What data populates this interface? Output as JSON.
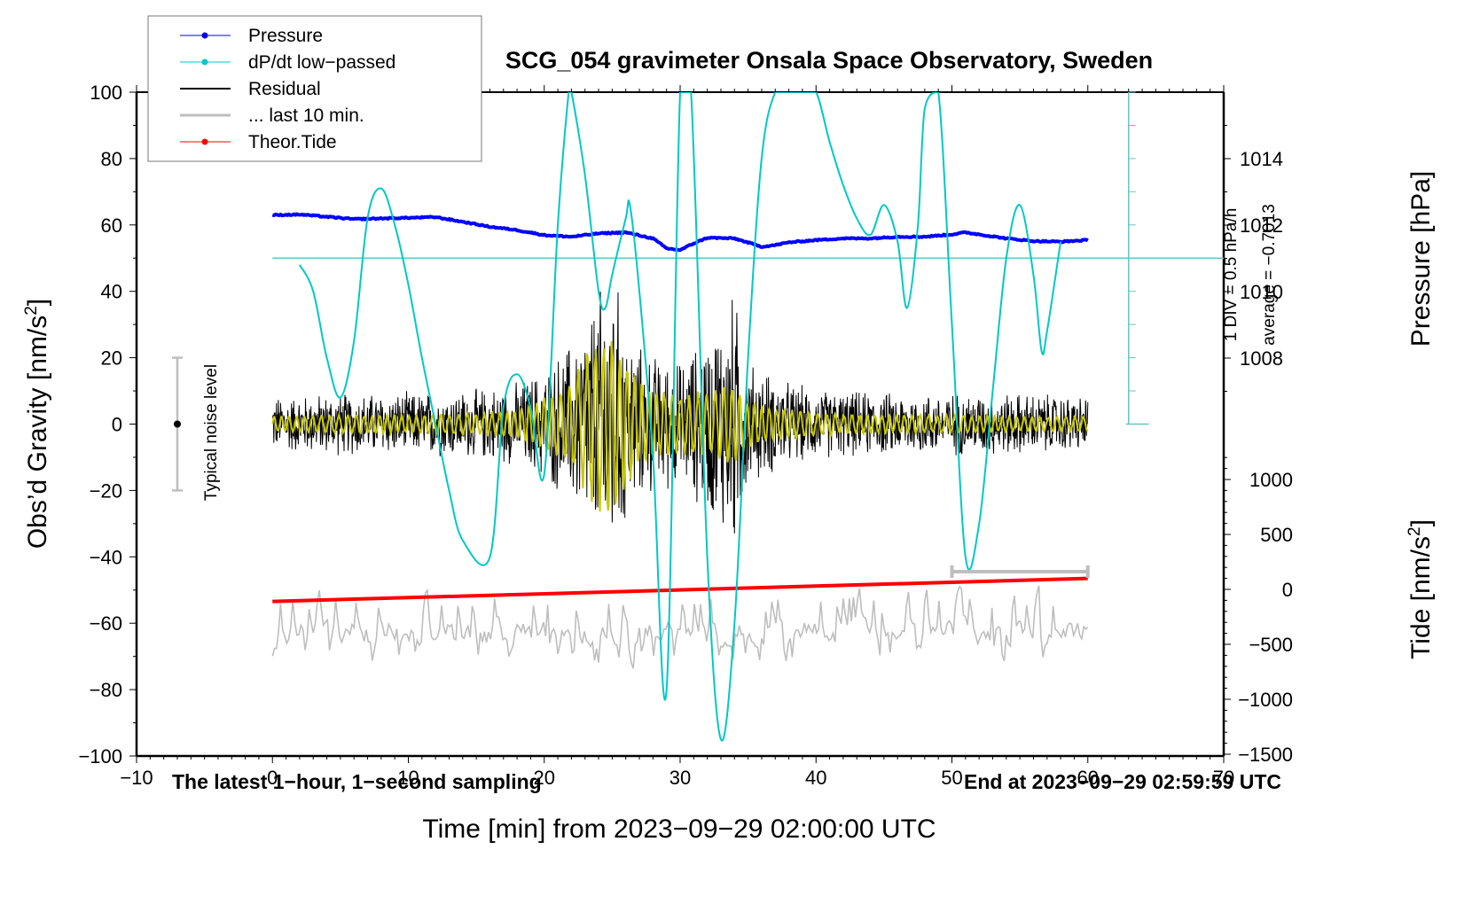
{
  "chart_data": {
    "type": "line",
    "title": "SCG_054 gravimeter Onsala Space Observatory, Sweden",
    "xlabel": "Time [min] from 2023−09−29 02:00:00 UTC",
    "ylabel": "Obs’d Gravity [nm/s²]",
    "ylabel_right_top": "Pressure [hPa]",
    "ylabel_right_bottom": "Tide [nm/s²]",
    "xlim": [
      -10,
      70
    ],
    "ylim": [
      -100,
      100
    ],
    "pressure_lim_visible": [
      1007,
      1016
    ],
    "tide_lim_visible": [
      -1500,
      1200
    ],
    "x_ticks": [
      "−10",
      "0",
      "10",
      "20",
      "30",
      "40",
      "50",
      "60",
      "70"
    ],
    "x_tick_values": [
      -10,
      0,
      10,
      20,
      30,
      40,
      50,
      60,
      70
    ],
    "y_ticks": [
      "100",
      "80",
      "60",
      "40",
      "20",
      "0",
      "−20",
      "−40",
      "−60",
      "−80",
      "−100"
    ],
    "y_tick_values": [
      100,
      80,
      60,
      40,
      20,
      0,
      -20,
      -40,
      -60,
      -80,
      -100
    ],
    "pressure_ticks": [
      "1014",
      "1012",
      "1010",
      "1008"
    ],
    "pressure_tick_values": [
      1014,
      1012,
      1010,
      1008
    ],
    "tide_ticks": [
      "1000",
      "500",
      "0",
      "−500",
      "−1000",
      "−1500"
    ],
    "tide_tick_values": [
      1000,
      500,
      0,
      -500,
      -1000,
      -1500
    ],
    "legend": {
      "placement": "top-left",
      "entries": [
        {
          "label": "Pressure",
          "color": "#0000ff",
          "marker": "dot"
        },
        {
          "label": "dP/dt low−passed",
          "color": "#00c8c8",
          "marker": "dot"
        },
        {
          "label": "Residual",
          "color": "#000000",
          "marker": "line"
        },
        {
          "label": "... last 10 min.",
          "color": "#bebebe",
          "marker": "line"
        },
        {
          "label": "Theor.Tide",
          "color": "#ff0000",
          "marker": "dot"
        }
      ]
    },
    "annotations": {
      "bottom_left": "The latest 1−hour, 1−second sampling",
      "bottom_right": "End at 2023−09−29 02:59:59 UTC",
      "noise_label": "Typical noise level",
      "noise_range": [
        -20,
        20
      ],
      "noise_x": -7,
      "dpdt_scale": "1 DIV = 0.5 hPa/h",
      "dpdt_average": "average = −0.7013",
      "last10_bar_range_min": [
        50,
        60
      ]
    },
    "series": [
      {
        "name": "Pressure",
        "axis": "pressure",
        "unit": "hPa",
        "color": "#0000ff",
        "x": [
          0,
          2,
          4,
          6,
          8,
          10,
          12,
          14,
          16,
          18,
          20,
          22,
          24,
          26,
          28,
          29,
          30,
          31,
          32,
          34,
          36,
          37,
          38,
          40,
          42,
          44,
          46,
          48,
          50,
          51,
          52,
          54,
          56,
          58,
          60
        ],
        "values": [
          1012.3,
          1012.32,
          1012.25,
          1012.18,
          1012.2,
          1012.22,
          1012.24,
          1012.1,
          1011.95,
          1011.85,
          1011.7,
          1011.65,
          1011.75,
          1011.78,
          1011.6,
          1011.3,
          1011.25,
          1011.45,
          1011.62,
          1011.6,
          1011.35,
          1011.4,
          1011.48,
          1011.55,
          1011.6,
          1011.6,
          1011.65,
          1011.65,
          1011.72,
          1011.78,
          1011.72,
          1011.6,
          1011.52,
          1011.5,
          1011.55
        ]
      },
      {
        "name": "dP/dt low-passed",
        "axis": "gravity-scaled",
        "unit": "nm/s2 plot units (1 DIV = 0.5 hPa/h)",
        "color": "#00c8c8",
        "x": [
          2,
          3,
          4,
          5,
          6,
          7,
          8,
          9,
          10,
          11,
          12,
          13,
          14,
          16,
          17,
          18,
          19,
          20,
          21,
          21.8,
          22,
          23,
          24,
          24.5,
          25,
          26,
          26.3,
          27,
          28,
          29,
          30,
          30.8,
          32,
          33,
          34,
          35,
          36,
          37,
          38,
          39,
          40,
          41,
          42,
          43,
          44,
          45,
          46,
          46.7,
          47.5,
          48,
          49,
          50,
          51,
          52,
          53,
          54,
          55,
          56,
          56.6,
          57,
          58
        ],
        "values": [
          48,
          40,
          20,
          8,
          25,
          62,
          71,
          60,
          42,
          20,
          0,
          -20,
          -35,
          -40,
          5,
          15,
          5,
          -15,
          60,
          110,
          110,
          75,
          40,
          35,
          45,
          62,
          66,
          40,
          -10,
          -80,
          110,
          110,
          -40,
          -95,
          -60,
          20,
          80,
          100,
          110,
          110,
          110,
          85,
          72,
          62,
          57,
          66,
          55,
          35,
          60,
          95,
          100,
          30,
          -40,
          -30,
          10,
          50,
          66,
          45,
          22,
          28,
          55
        ]
      },
      {
        "name": "Residual",
        "axis": "gravity",
        "unit": "nm/s2",
        "color": "#000000",
        "x": [
          0,
          5,
          10,
          15,
          18,
          20,
          22,
          23,
          24,
          25,
          26,
          27,
          28,
          30,
          32,
          33,
          34,
          35,
          38,
          40,
          45,
          50,
          55,
          60
        ],
        "envelope": [
          8,
          9,
          9,
          10,
          12,
          16,
          24,
          30,
          38,
          45,
          30,
          22,
          20,
          18,
          26,
          32,
          38,
          18,
          12,
          10,
          9,
          9,
          9,
          8
        ]
      },
      {
        "name": "Residual (filtered, yellow)",
        "axis": "gravity",
        "unit": "nm/s2",
        "color": "#c8c800",
        "x": [
          0,
          5,
          10,
          15,
          18,
          20,
          22,
          23,
          24,
          25,
          26,
          27,
          28,
          30,
          32,
          33,
          34,
          35,
          38,
          40,
          45,
          50,
          55,
          60
        ],
        "envelope": [
          2,
          2.5,
          2.5,
          3,
          4,
          7,
          12,
          18,
          24,
          26,
          18,
          12,
          10,
          8,
          9,
          10,
          11,
          6,
          4,
          3,
          2.5,
          2.5,
          2,
          2
        ]
      },
      {
        "name": "... last 10 min.",
        "axis": "tide-scaled",
        "unit": "gravity plot units",
        "color": "#bebebe",
        "x_range": [
          0,
          60
        ],
        "baseline": -63,
        "range": [
          -75,
          -50
        ]
      },
      {
        "name": "Theor.Tide",
        "axis": "tide",
        "unit": "nm/s2",
        "color": "#ff0000",
        "x": [
          0,
          60
        ],
        "values": [
          -110,
          100
        ]
      }
    ],
    "grid": false
  }
}
